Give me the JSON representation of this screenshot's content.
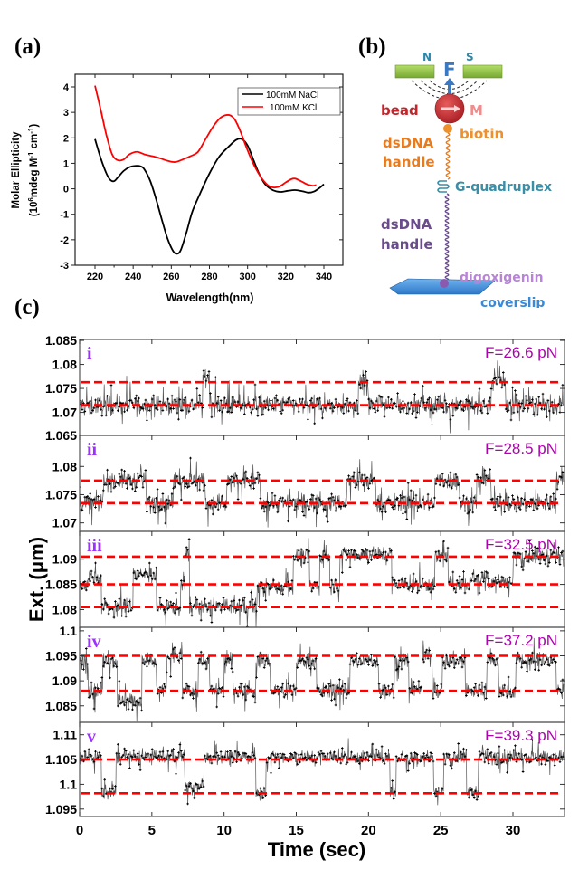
{
  "figure": {
    "panel_labels": [
      "(a)",
      "(b)",
      "(c)"
    ]
  },
  "chart_data": [
    {
      "type": "line",
      "panel": "(a)",
      "title": "",
      "xlabel": "Wavelength(nm)",
      "ylabel_line1": "Molar Ellipticity",
      "ylabel_line2_parts": [
        "(10",
        "6",
        "mdeg M",
        "-1",
        " cm",
        "-1",
        ")"
      ],
      "xlim": [
        210,
        350
      ],
      "ylim": [
        -3,
        4.5
      ],
      "xticks": [
        220,
        240,
        260,
        280,
        300,
        320,
        340
      ],
      "yticks": [
        -3,
        -2,
        -1,
        0,
        1,
        2,
        3,
        4
      ],
      "grid": false,
      "legend_position": "top-right",
      "series": [
        {
          "name": "100mM NaCl",
          "color": "#000000",
          "x": [
            220,
            223,
            226,
            228,
            230,
            232,
            235,
            238,
            241,
            244,
            246,
            249,
            252,
            255,
            258,
            261,
            263,
            265,
            268,
            271,
            275,
            280,
            285,
            290,
            294,
            297,
            300,
            303,
            306,
            309,
            312,
            315,
            318,
            321,
            325,
            329,
            332,
            335,
            338,
            340
          ],
          "values": [
            1.95,
            1.2,
            0.6,
            0.35,
            0.3,
            0.45,
            0.7,
            0.85,
            0.9,
            0.88,
            0.75,
            0.3,
            -0.4,
            -1.2,
            -1.95,
            -2.45,
            -2.55,
            -2.4,
            -1.7,
            -0.9,
            -0.2,
            0.6,
            1.25,
            1.65,
            1.92,
            1.95,
            1.7,
            1.15,
            0.6,
            0.2,
            0.0,
            -0.1,
            -0.12,
            -0.08,
            -0.05,
            -0.1,
            -0.15,
            -0.1,
            0.05,
            0.18
          ]
        },
        {
          "name": "100mM KCl",
          "color": "#ff0000",
          "x": [
            220,
            223,
            226,
            229,
            232,
            235,
            238,
            242,
            246,
            250,
            254,
            258,
            262,
            266,
            270,
            274,
            278,
            282,
            286,
            290,
            293,
            296,
            299,
            302,
            305,
            308,
            311,
            314,
            317,
            320,
            323,
            325,
            328,
            331,
            334,
            336
          ],
          "values": [
            4.05,
            3.1,
            2.1,
            1.35,
            1.12,
            1.15,
            1.35,
            1.45,
            1.35,
            1.28,
            1.2,
            1.1,
            1.05,
            1.15,
            1.28,
            1.45,
            1.95,
            2.45,
            2.8,
            2.9,
            2.75,
            2.3,
            1.7,
            1.15,
            0.7,
            0.35,
            0.12,
            0.05,
            0.1,
            0.25,
            0.38,
            0.4,
            0.3,
            0.18,
            0.12,
            0.15
          ]
        }
      ]
    },
    {
      "type": "line",
      "panel": "(c)",
      "title": "",
      "xlabel": "Time (sec)",
      "ylabel": "Ext. (μm)",
      "xlim": [
        0,
        33.5
      ],
      "xticks": [
        0,
        5,
        10,
        15,
        20,
        25,
        30
      ],
      "grid": false,
      "subplots": [
        {
          "id": "i",
          "force_label": "F=26.6 pN",
          "ylim": [
            1.0652,
            1.0852
          ],
          "yticks": [
            1.07,
            1.075,
            1.08,
            1.085
          ],
          "ytick_labels": [
            "1.07",
            "1.075",
            "1.08",
            "1.085"
          ],
          "levels": [
            1.0763,
            1.0715
          ],
          "noise": 0.0018,
          "states": [
            [
              0,
              1.0715
            ],
            [
              8.5,
              1.0775
            ],
            [
              9.0,
              1.0715
            ],
            [
              19.3,
              1.0765
            ],
            [
              20.0,
              1.0715
            ],
            [
              28.5,
              1.0765
            ],
            [
              29.5,
              1.0715
            ],
            [
              33.5,
              1.0715
            ]
          ]
        },
        {
          "id": "ii",
          "force_label": "F=28.5 pN",
          "ylim": [
            1.0685,
            1.0855
          ],
          "yticks": [
            1.07,
            1.075,
            1.08
          ],
          "ytick_labels": [
            "1.07",
            "1.075",
            "1.08"
          ],
          "extra_top_label": "1.065",
          "levels": [
            1.0775,
            1.0735
          ],
          "noise": 0.0015,
          "states": [
            [
              0,
              1.0735
            ],
            [
              1.6,
              1.0775
            ],
            [
              4.6,
              1.0735
            ],
            [
              6.5,
              1.0775
            ],
            [
              8.7,
              1.0735
            ],
            [
              10.2,
              1.0775
            ],
            [
              12.5,
              1.0735
            ],
            [
              18.5,
              1.0775
            ],
            [
              20.5,
              1.0735
            ],
            [
              24.6,
              1.0775
            ],
            [
              26.3,
              1.0735
            ],
            [
              27.5,
              1.0775
            ],
            [
              28.5,
              1.0735
            ],
            [
              33.0,
              1.0775
            ],
            [
              33.5,
              1.0775
            ]
          ]
        },
        {
          "id": "iii",
          "force_label": "F=32.5 pN",
          "ylim": [
            1.0765,
            1.0955
          ],
          "yticks": [
            1.08,
            1.085,
            1.09
          ],
          "ytick_labels": [
            "1.08",
            "1.085",
            "1.09"
          ],
          "levels": [
            1.0905,
            1.085,
            1.0805
          ],
          "noise": 0.0015,
          "states": [
            [
              0,
              1.085
            ],
            [
              0.6,
              1.0865
            ],
            [
              1.5,
              1.0805
            ],
            [
              3.7,
              1.087
            ],
            [
              5.3,
              1.0805
            ],
            [
              7.0,
              1.085
            ],
            [
              7.3,
              1.091
            ],
            [
              7.6,
              1.0805
            ],
            [
              12.3,
              1.0845
            ],
            [
              14.8,
              1.0905
            ],
            [
              15.9,
              1.0845
            ],
            [
              16.6,
              1.0905
            ],
            [
              17.3,
              1.085
            ],
            [
              18.0,
              1.091
            ],
            [
              21.6,
              1.085
            ],
            [
              24.6,
              1.0905
            ],
            [
              25.5,
              1.085
            ],
            [
              27.0,
              1.0865
            ],
            [
              28.3,
              1.0855
            ],
            [
              30.0,
              1.0905
            ],
            [
              33.5,
              1.0905
            ]
          ]
        },
        {
          "id": "iv",
          "force_label": "F=37.2 pN",
          "ylim": [
            1.0817,
            1.1007
          ],
          "yticks": [
            1.085,
            1.09,
            1.095,
            1.1
          ],
          "ytick_labels": [
            "1.085",
            "1.09",
            "1.095",
            "1.1"
          ],
          "levels": [
            1.095,
            1.088
          ],
          "noise": 0.0015,
          "states": [
            [
              0,
              1.094
            ],
            [
              0.6,
              1.088
            ],
            [
              1.6,
              1.094
            ],
            [
              2.6,
              1.086
            ],
            [
              4.3,
              1.094
            ],
            [
              5.3,
              1.088
            ],
            [
              6.0,
              1.095
            ],
            [
              7.1,
              1.088
            ],
            [
              8.2,
              1.094
            ],
            [
              9.0,
              1.088
            ],
            [
              10.0,
              1.094
            ],
            [
              10.6,
              1.088
            ],
            [
              12.2,
              1.094
            ],
            [
              13.2,
              1.088
            ],
            [
              15.0,
              1.094
            ],
            [
              16.4,
              1.088
            ],
            [
              18.7,
              1.094
            ],
            [
              20.7,
              1.088
            ],
            [
              21.8,
              1.094
            ],
            [
              22.8,
              1.088
            ],
            [
              23.7,
              1.095
            ],
            [
              24.4,
              1.088
            ],
            [
              25.1,
              1.094
            ],
            [
              26.7,
              1.088
            ],
            [
              28.2,
              1.094
            ],
            [
              29.0,
              1.088
            ],
            [
              30.2,
              1.094
            ],
            [
              33.0,
              1.088
            ],
            [
              33.5,
              1.088
            ]
          ]
        },
        {
          "id": "v",
          "force_label": "F=39.3 pN",
          "ylim": [
            1.0935,
            1.1125
          ],
          "yticks": [
            1.095,
            1.1,
            1.105,
            1.11
          ],
          "ytick_labels": [
            "1.095",
            "1.1",
            "1.105",
            "1.11"
          ],
          "levels": [
            1.105,
            1.0982
          ],
          "noise": 0.0013,
          "states": [
            [
              0,
              1.1055
            ],
            [
              1.5,
              1.0985
            ],
            [
              2.5,
              1.1055
            ],
            [
              7.3,
              1.0995
            ],
            [
              8.6,
              1.1055
            ],
            [
              12.2,
              1.0985
            ],
            [
              12.9,
              1.1055
            ],
            [
              21.5,
              1.0985
            ],
            [
              21.9,
              1.1055
            ],
            [
              24.5,
              1.0985
            ],
            [
              25.2,
              1.1055
            ],
            [
              26.8,
              1.0985
            ],
            [
              27.6,
              1.1055
            ],
            [
              33.5,
              1.1055
            ]
          ]
        }
      ]
    }
  ],
  "diagram": {
    "magnet_n": "N",
    "magnet_s": "S",
    "force": "F",
    "bead": "bead",
    "moment": "M",
    "biotin": "biotin",
    "dsdna_top": [
      "dsDNA",
      "handle"
    ],
    "gquad": "G-quadruplex",
    "dsdna_bottom": [
      "dsDNA",
      "handle"
    ],
    "digoxigenin": "digoxigenin",
    "coverslip": "coverslip",
    "colors": {
      "magnet": "#8dc63f",
      "force": "#3a78c2",
      "bead": "#c0272d",
      "moment": "#f08c8c",
      "biotin": "#f0902a",
      "dsdna_top": "#e87b1e",
      "gquad": "#3a8ea6",
      "dsdna_bottom": "#6a4c8c",
      "digoxigenin": "#b784d6",
      "coverslip": "#3a8ad6",
      "label_magnet": "#2e86a8",
      "panel_c_force": "#b000b0",
      "panel_c_id": "#9b30ff",
      "dashed_level": "#ff0000"
    }
  }
}
